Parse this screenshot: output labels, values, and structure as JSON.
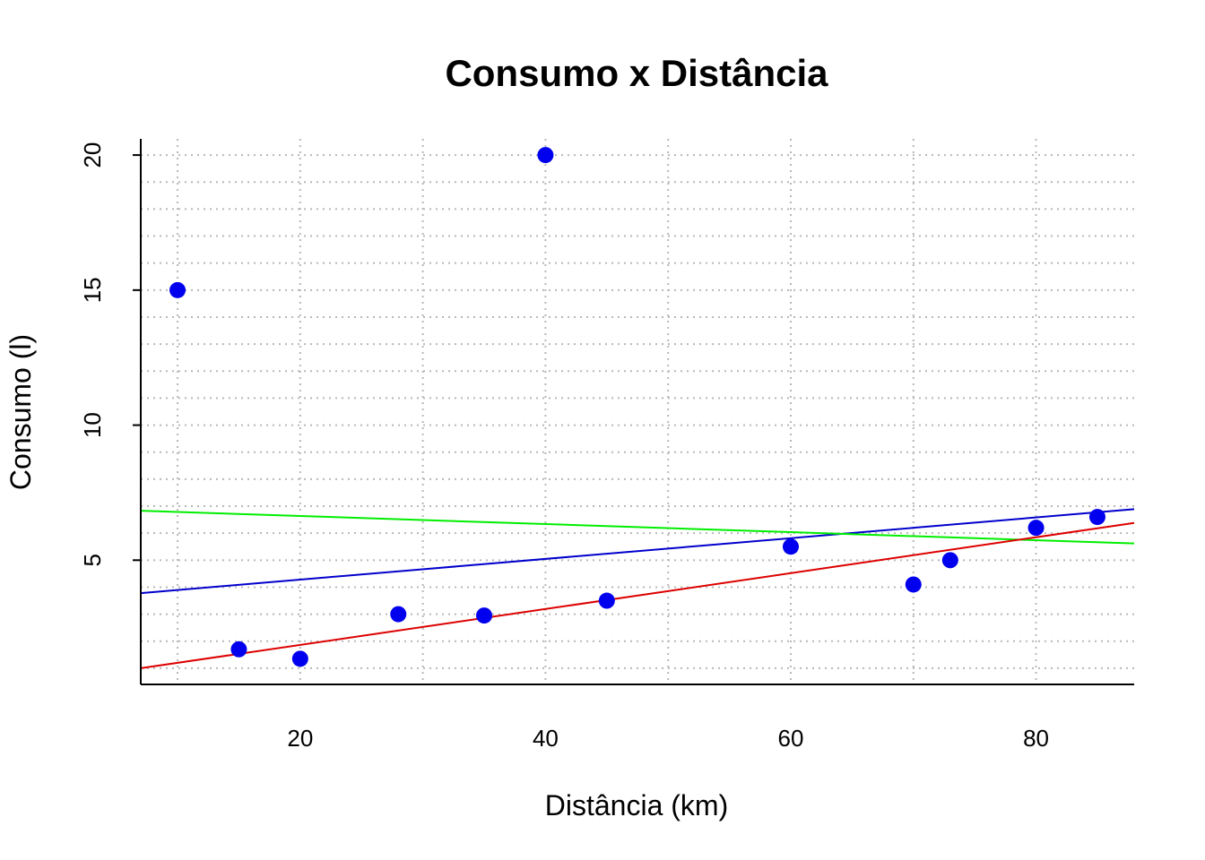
{
  "chart_data": {
    "type": "scatter",
    "title": "Consumo x Distância",
    "xlabel": "Distância (km)",
    "ylabel": "Consumo (l)",
    "xlim": [
      7,
      88
    ],
    "ylim": [
      0.4,
      20.6
    ],
    "x_ticks": [
      20,
      40,
      60,
      80
    ],
    "y_ticks": [
      5,
      10,
      15,
      20
    ],
    "grid": true,
    "minor_grid": true,
    "x_grid": [
      10,
      20,
      30,
      40,
      50,
      60,
      70,
      80
    ],
    "y_grid": [
      1,
      2,
      3,
      4,
      5,
      6,
      7,
      8,
      9,
      10,
      11,
      12,
      13,
      14,
      15,
      16,
      17,
      18,
      19,
      20
    ],
    "points": {
      "color": "#0000ee",
      "x": [
        10,
        15,
        20,
        28,
        35,
        40,
        45,
        60,
        70,
        73,
        80,
        85
      ],
      "y": [
        15,
        1.7,
        1.35,
        3.0,
        2.95,
        20,
        3.5,
        5.5,
        4.1,
        5.0,
        6.2,
        6.6
      ]
    },
    "lines": [
      {
        "color": "#0000cc",
        "x": [
          7,
          88
        ],
        "y": [
          3.78,
          6.89
        ]
      },
      {
        "color": "#00ee00",
        "x": [
          7,
          88
        ],
        "y": [
          6.83,
          5.62
        ]
      },
      {
        "color": "#dd0000",
        "x": [
          7,
          88
        ],
        "y": [
          1.0,
          6.38
        ]
      }
    ]
  }
}
